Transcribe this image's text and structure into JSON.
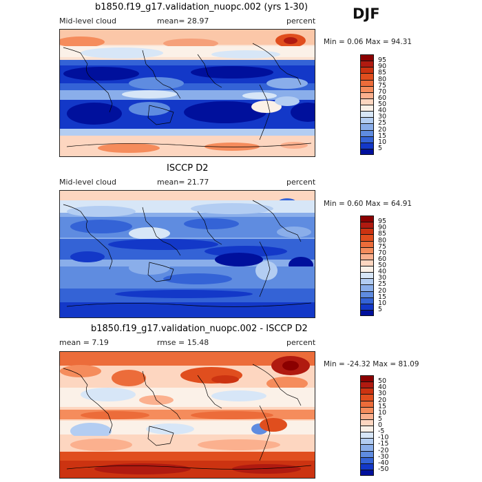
{
  "season": "DJF",
  "panels": [
    {
      "title": "b1850.f19_g17.validation_nuopc.002 (yrs 1-30)",
      "left_label": "Mid-level cloud",
      "center_label": "mean=  28.97",
      "right_label": "percent",
      "minmax": "Min =   0.06 Max =  94.31",
      "legend": {
        "labels": [
          "95",
          "90",
          "85",
          "80",
          "75",
          "70",
          "60",
          "50",
          "40",
          "30",
          "25",
          "20",
          "15",
          "10",
          "5"
        ],
        "colors": [
          "#8b0000",
          "#b01a10",
          "#cc3311",
          "#e04e1e",
          "#ec6c3a",
          "#f58c5c",
          "#fbb08e",
          "#fdd6c0",
          "#fbf1e8",
          "#d7e6f7",
          "#b3cdf2",
          "#8aaeea",
          "#5f8ce0",
          "#3463d6",
          "#1338c8",
          "#00109c"
        ]
      }
    },
    {
      "title": "ISCCP D2",
      "left_label": "Mid-level cloud",
      "center_label": "mean=  21.77",
      "right_label": "percent",
      "minmax": "Min =   0.60 Max =  64.91",
      "legend": {
        "labels": [
          "95",
          "90",
          "85",
          "80",
          "75",
          "70",
          "60",
          "50",
          "40",
          "30",
          "25",
          "20",
          "15",
          "10",
          "5"
        ],
        "colors": [
          "#8b0000",
          "#b01a10",
          "#cc3311",
          "#e04e1e",
          "#ec6c3a",
          "#f58c5c",
          "#fbb08e",
          "#fdd6c0",
          "#fbf1e8",
          "#d7e6f7",
          "#b3cdf2",
          "#8aaeea",
          "#5f8ce0",
          "#3463d6",
          "#1338c8",
          "#00109c"
        ]
      }
    },
    {
      "title": "b1850.f19_g17.validation_nuopc.002 - ISCCP D2",
      "left_label": "mean =   7.19",
      "center_label": "rmse =  15.48",
      "right_label": "percent",
      "minmax": "Min = -24.32 Max =  81.09",
      "legend": {
        "labels": [
          "50",
          "40",
          "30",
          "20",
          "15",
          "10",
          "5",
          "0",
          "-5",
          "-10",
          "-15",
          "-20",
          "-30",
          "-40",
          "-50"
        ],
        "colors": [
          "#8b0000",
          "#b01a10",
          "#cc3311",
          "#e04e1e",
          "#ec6c3a",
          "#f58c5c",
          "#fbb08e",
          "#fdd6c0",
          "#fbf1e8",
          "#d7e6f7",
          "#b3cdf2",
          "#8aaeea",
          "#5f8ce0",
          "#3463d6",
          "#1338c8",
          "#00109c"
        ]
      }
    }
  ]
}
